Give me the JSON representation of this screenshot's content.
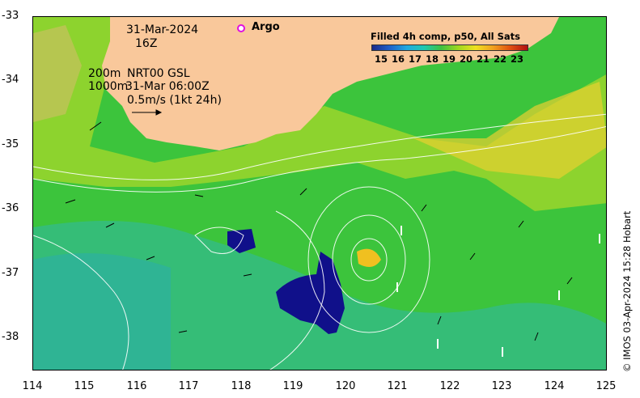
{
  "map": {
    "date": "31-Mar-2024",
    "hour": "16Z",
    "contour_label_1": "200m",
    "contour_label_2": "1000m",
    "product": "NRT00 GSL",
    "product_time": "31-Mar 06:00Z",
    "scale_text": "0.5m/s (1kt 24h)",
    "argo_label": "Argo",
    "colorbar_title": "Filled 4h comp, p50, All Sats",
    "colorbar_ticks": [
      "15",
      "16",
      "17",
      "18",
      "19",
      "20",
      "21",
      "22",
      "23"
    ],
    "credit": "© IMOS 03-Apr-2024 15:28 Hobart",
    "y_ticks": [
      "-33",
      "-34",
      "-35",
      "-36",
      "-37",
      "-38"
    ],
    "x_ticks": [
      "114",
      "115",
      "116",
      "117",
      "118",
      "119",
      "120",
      "121",
      "122",
      "123",
      "124",
      "125"
    ],
    "colors": {
      "land": "#f9c89b",
      "ocean_green": "#3cc43c",
      "warm_yellow": "#c8e020",
      "cool_cyan": "#30b8a8",
      "cold_navy": "#10108a",
      "argo": "#e010e0"
    }
  }
}
